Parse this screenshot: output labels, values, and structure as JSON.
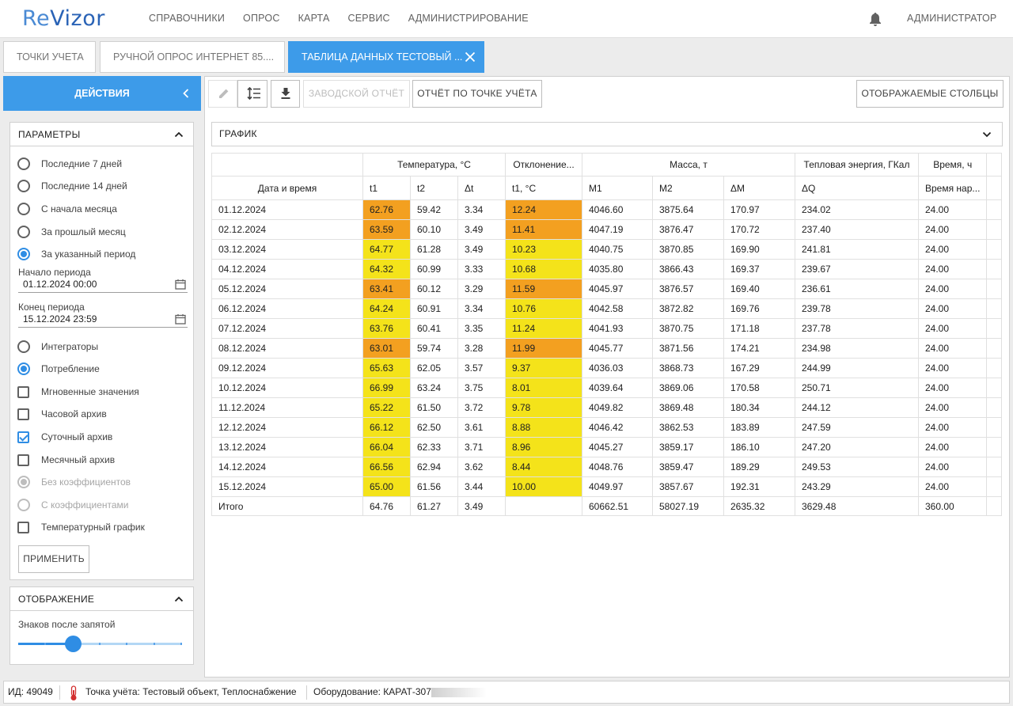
{
  "header": {
    "logo_re": "Re",
    "logo_rest": "Vizor",
    "nav": [
      "СПРАВОЧНИКИ",
      "ОПРОС",
      "КАРТА",
      "СЕРВИС",
      "АДМИНИСТРИРОВАНИЕ"
    ],
    "user": "АДМИНИСТРАТОР"
  },
  "tabs": [
    {
      "label": "ТОЧКИ УЧЕТА"
    },
    {
      "label": "РУЧНОЙ ОПРОС ИНТЕРНЕТ 85...."
    },
    {
      "label": "ТАБЛИЦА ДАННЫХ ТЕСТОВЫЙ ..."
    }
  ],
  "actions_label": "ДЕЙСТВИЯ",
  "params": {
    "title": "ПАРАМЕТРЫ",
    "periods": [
      "Последние 7 дней",
      "Последние 14 дней",
      "С начала месяца",
      "За прошлый месяц",
      "За указанный период"
    ],
    "selected_period": "За указанный период",
    "start_label": "Начало периода",
    "start_value": "01.12.2024 00:00",
    "end_label": "Конец периода",
    "end_value": "15.12.2024 23:59",
    "modes": [
      "Интеграторы",
      "Потребление"
    ],
    "selected_mode": "Потребление",
    "archives": [
      {
        "label": "Мгновенные значения",
        "checked": false
      },
      {
        "label": "Часовой архив",
        "checked": false
      },
      {
        "label": "Суточный архив",
        "checked": true
      },
      {
        "label": "Месячный архив",
        "checked": false
      }
    ],
    "coef": [
      "Без коэффициентов",
      "С коэффициентами"
    ],
    "temp_graph": "Температурный график",
    "apply": "ПРИМЕНИТЬ"
  },
  "display": {
    "title": "ОТОБРАЖЕНИЕ",
    "decimals_label": "Знаков после запятой",
    "decimals_value": 2
  },
  "toolbar": {
    "factory_report": "ЗАВОДСКОЙ ОТЧЁТ",
    "point_report": "ОТЧЁТ ПО ТОЧКЕ УЧЁТА",
    "columns": "ОТОБРАЖАЕМЫЕ СТОЛБЦЫ"
  },
  "graph_label": "ГРАФИК",
  "table": {
    "group_headers": [
      "Температура, °С",
      "Отклонение...",
      "Масса, т",
      "Тепловая энергия, ГКал",
      "Время, ч"
    ],
    "columns": [
      "Дата и время",
      "t1",
      "t2",
      "Δt",
      "t1, °С",
      "M1",
      "M2",
      "ΔM",
      "ΔQ",
      "Время нар..."
    ],
    "rows": [
      [
        "01.12.2024",
        "62.76",
        "59.42",
        "3.34",
        "12.24",
        "4046.60",
        "3875.64",
        "170.97",
        "234.02",
        "24.00"
      ],
      [
        "02.12.2024",
        "63.59",
        "60.10",
        "3.49",
        "11.41",
        "4047.19",
        "3876.47",
        "170.72",
        "237.40",
        "24.00"
      ],
      [
        "03.12.2024",
        "64.77",
        "61.28",
        "3.49",
        "10.23",
        "4040.75",
        "3870.85",
        "169.90",
        "241.81",
        "24.00"
      ],
      [
        "04.12.2024",
        "64.32",
        "60.99",
        "3.33",
        "10.68",
        "4035.80",
        "3866.43",
        "169.37",
        "239.67",
        "24.00"
      ],
      [
        "05.12.2024",
        "63.41",
        "60.12",
        "3.29",
        "11.59",
        "4045.97",
        "3876.57",
        "169.40",
        "236.61",
        "24.00"
      ],
      [
        "06.12.2024",
        "64.24",
        "60.91",
        "3.34",
        "10.76",
        "4042.58",
        "3872.82",
        "169.76",
        "239.78",
        "24.00"
      ],
      [
        "07.12.2024",
        "63.76",
        "60.41",
        "3.35",
        "11.24",
        "4041.93",
        "3870.75",
        "171.18",
        "237.78",
        "24.00"
      ],
      [
        "08.12.2024",
        "63.01",
        "59.74",
        "3.28",
        "11.99",
        "4045.77",
        "3871.56",
        "174.21",
        "234.98",
        "24.00"
      ],
      [
        "09.12.2024",
        "65.63",
        "62.05",
        "3.57",
        "9.37",
        "4036.03",
        "3868.73",
        "167.29",
        "244.99",
        "24.00"
      ],
      [
        "10.12.2024",
        "66.99",
        "63.24",
        "3.75",
        "8.01",
        "4039.64",
        "3869.06",
        "170.58",
        "250.71",
        "24.00"
      ],
      [
        "11.12.2024",
        "65.22",
        "61.50",
        "3.72",
        "9.78",
        "4049.82",
        "3869.48",
        "180.34",
        "244.12",
        "24.00"
      ],
      [
        "12.12.2024",
        "66.12",
        "62.50",
        "3.61",
        "8.88",
        "4046.42",
        "3862.53",
        "183.89",
        "247.59",
        "24.00"
      ],
      [
        "13.12.2024",
        "66.04",
        "62.33",
        "3.71",
        "8.96",
        "4045.27",
        "3859.17",
        "186.10",
        "247.20",
        "24.00"
      ],
      [
        "14.12.2024",
        "66.56",
        "62.94",
        "3.62",
        "8.44",
        "4048.76",
        "3859.47",
        "189.29",
        "249.53",
        "24.00"
      ],
      [
        "15.12.2024",
        "65.00",
        "61.56",
        "3.44",
        "10.00",
        "4049.97",
        "3857.67",
        "192.31",
        "243.29",
        "24.00"
      ]
    ],
    "highlight": [
      "orange",
      "orange",
      "yellow",
      "yellow",
      "orange",
      "yellow",
      "yellow",
      "orange",
      "yellow",
      "yellow",
      "yellow",
      "yellow",
      "yellow",
      "yellow",
      "yellow"
    ],
    "total": [
      "Итого",
      "64.76",
      "61.27",
      "3.49",
      "",
      "60662.51",
      "58027.19",
      "2635.32",
      "3629.48",
      "360.00"
    ],
    "colors": {
      "orange": "#f3a020",
      "yellow": "#f4e31a"
    }
  },
  "status": {
    "id": "ИД: 49049",
    "point": "Точка учёта: Тестовый объект, Теплоснабжение",
    "equipment": "Оборудование: КАРАТ-307"
  }
}
